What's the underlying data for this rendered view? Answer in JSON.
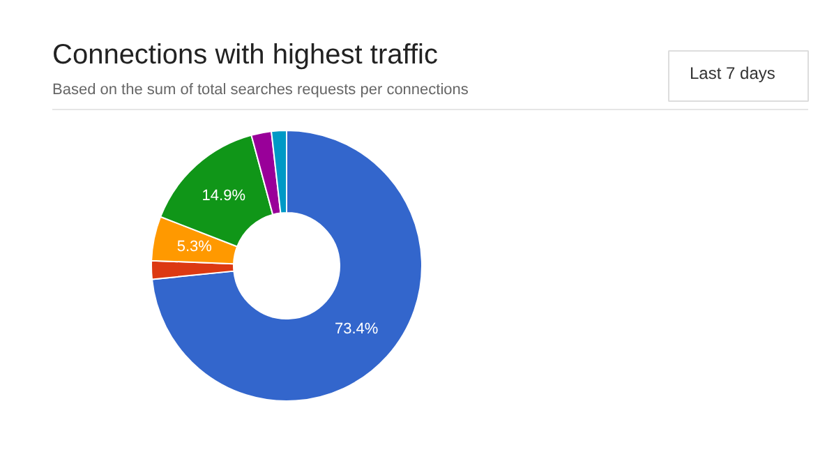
{
  "chart_data": {
    "type": "donut",
    "title": "Connections with highest traffic",
    "subtitle": "Based on the sum of total searches requests per connections",
    "annotations": [
      "Last 7 days"
    ],
    "categories": [
      null,
      null,
      null,
      null,
      null,
      null
    ],
    "values": [
      73.4,
      2.2,
      5.3,
      14.9,
      2.4,
      1.8
    ],
    "colors": [
      "#3366cc",
      "#dc3912",
      "#ff9900",
      "#109618",
      "#990099",
      "#0099c6"
    ],
    "value_labels": [
      "73.4%",
      null,
      "5.3%",
      "14.9%",
      null,
      null
    ]
  }
}
